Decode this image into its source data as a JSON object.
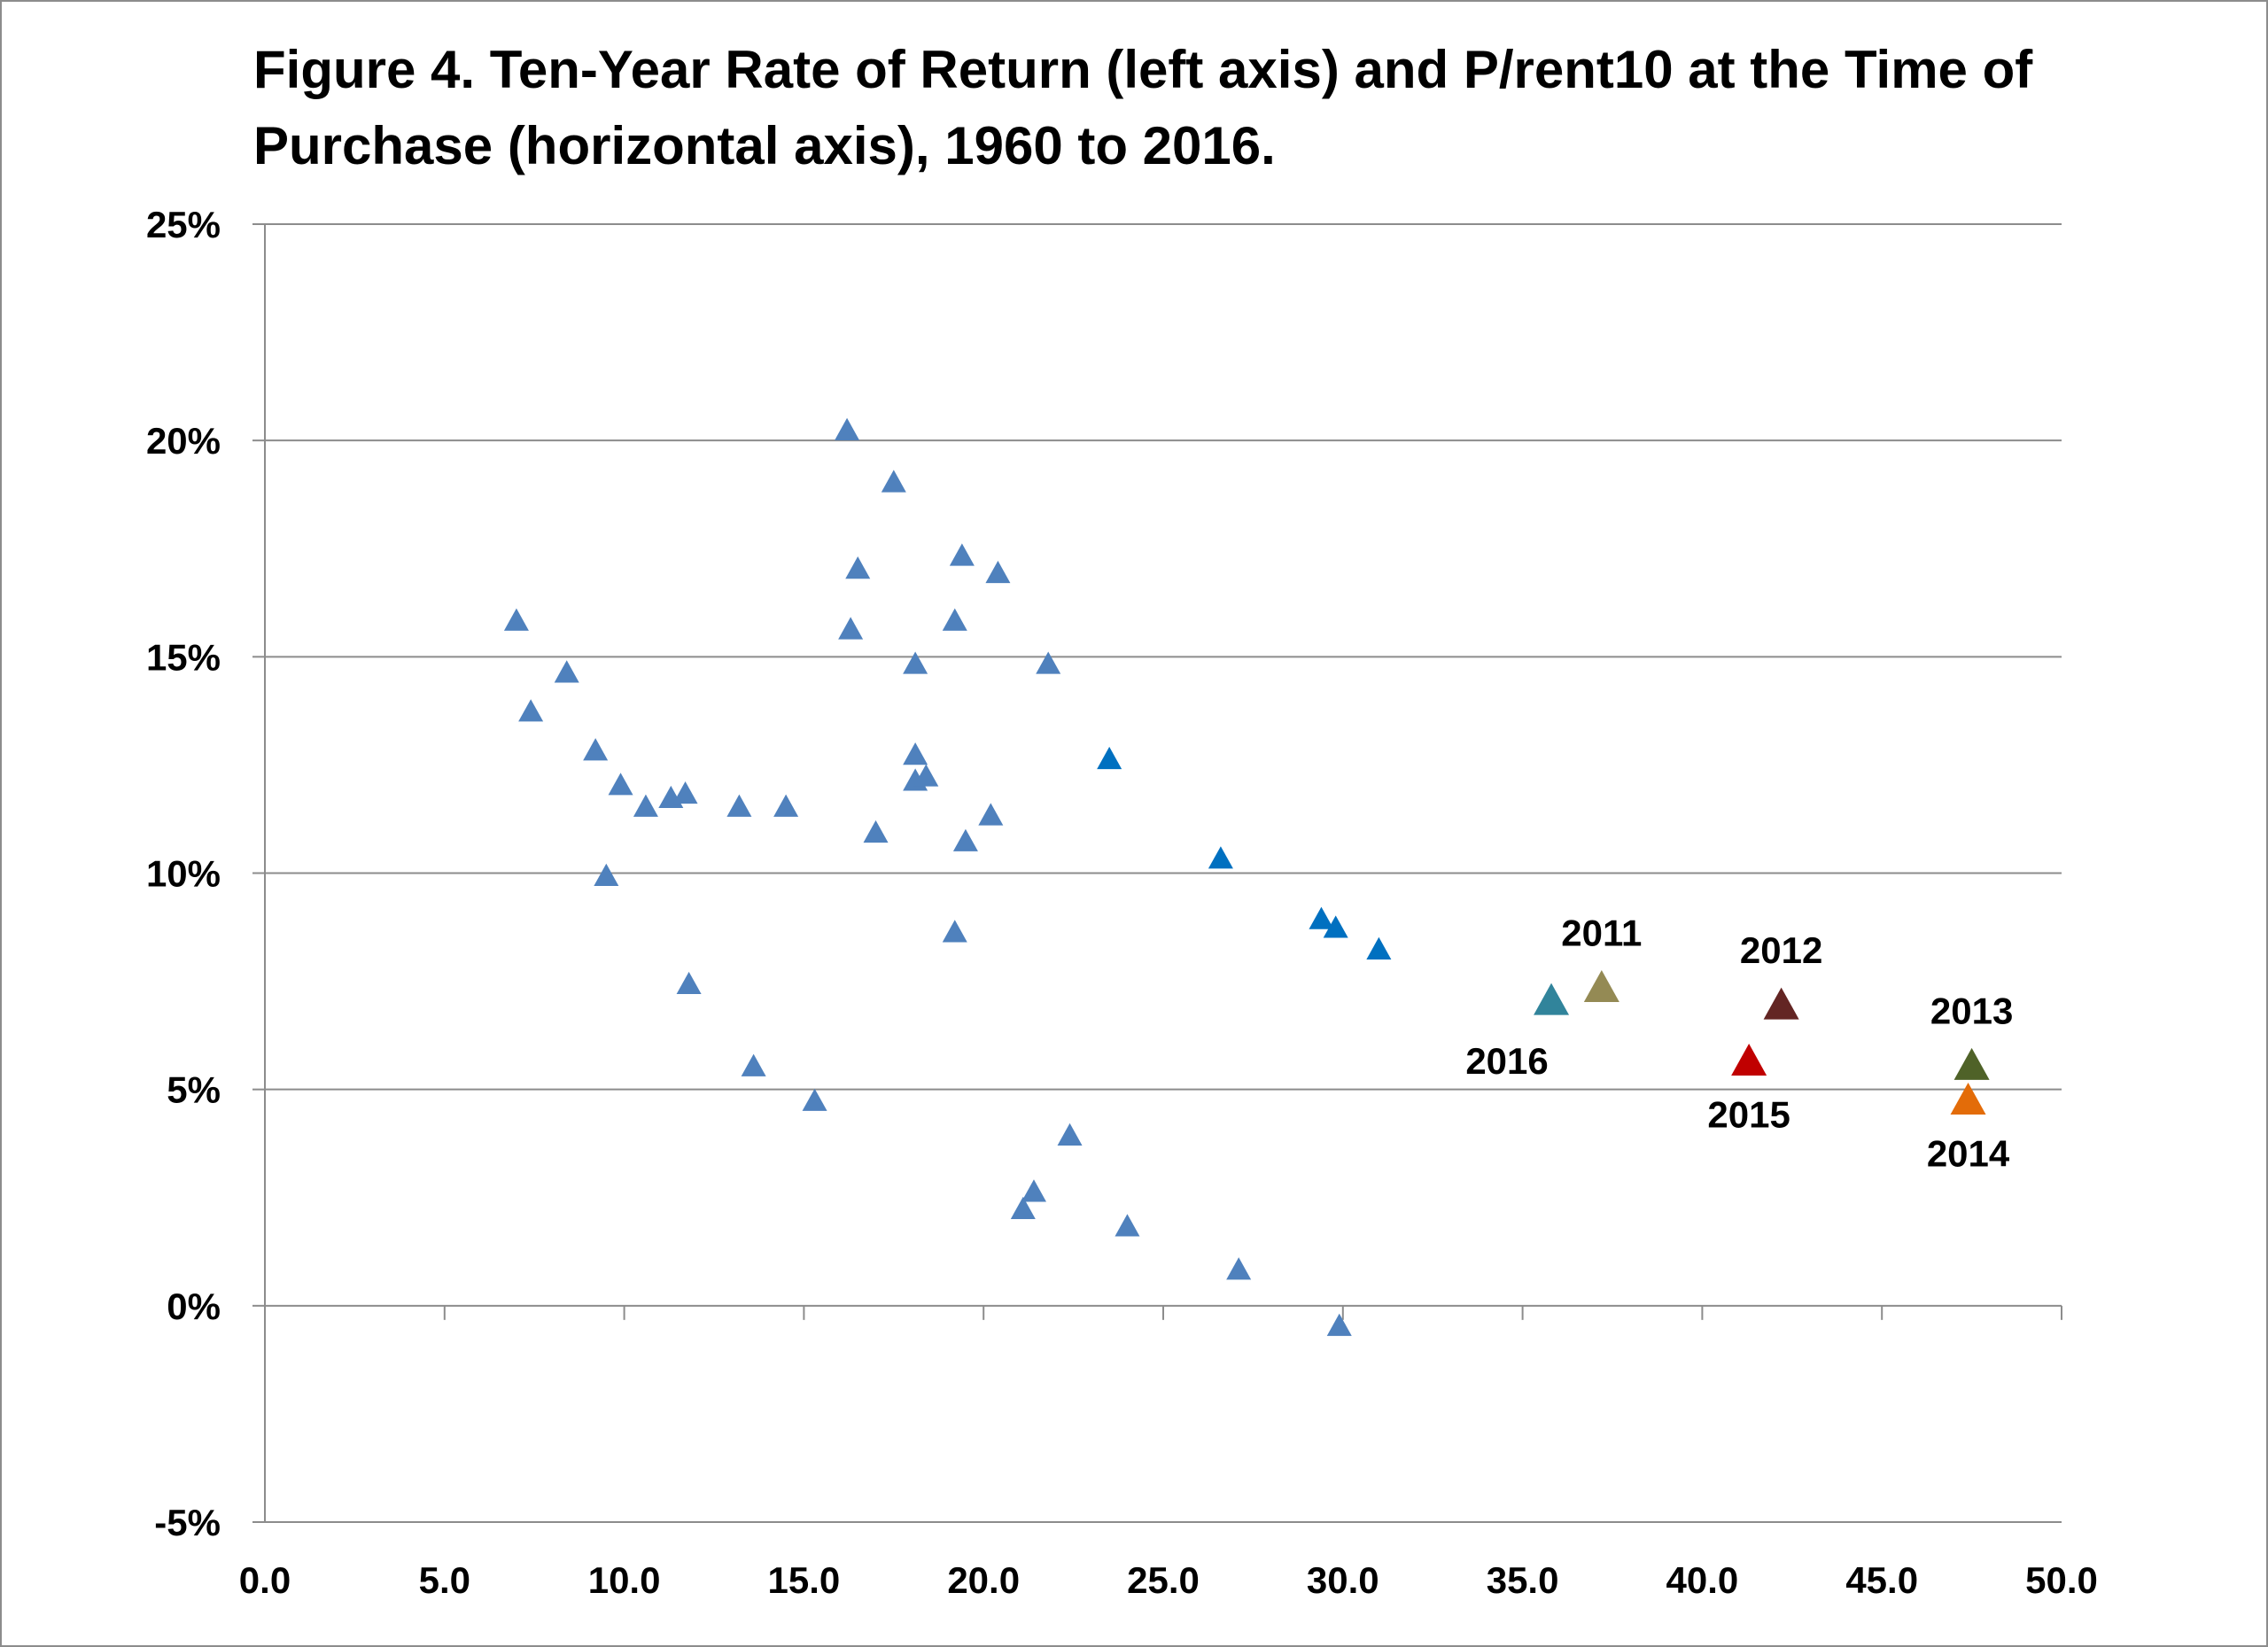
{
  "chart_data": {
    "type": "scatter",
    "title": "Figure 4.  Ten-Year Rate of Return (left axis) and P/rent10 at the Time of Purchase (horizontal axis), 1960 to 2016.",
    "xlabel": "",
    "ylabel": "",
    "xlim": [
      0,
      50
    ],
    "ylim": [
      -0.05,
      0.25
    ],
    "x_ticks": [
      "0.0",
      "5.0",
      "10.0",
      "15.0",
      "20.0",
      "25.0",
      "30.0",
      "35.0",
      "40.0",
      "45.0",
      "50.0"
    ],
    "y_ticks": [
      "-5%",
      "0%",
      "5%",
      "10%",
      "15%",
      "20%",
      "25%"
    ],
    "grid": "horizontal",
    "marker": "triangle",
    "series": [
      {
        "color": "#4f81bd",
        "points": [
          {
            "x": 7.0,
            "y": 0.158
          },
          {
            "x": 7.4,
            "y": 0.137
          },
          {
            "x": 8.4,
            "y": 0.146
          },
          {
            "x": 9.2,
            "y": 0.128
          },
          {
            "x": 9.5,
            "y": 0.099
          },
          {
            "x": 9.9,
            "y": 0.12
          },
          {
            "x": 10.6,
            "y": 0.115
          },
          {
            "x": 11.3,
            "y": 0.117
          },
          {
            "x": 11.7,
            "y": 0.118
          },
          {
            "x": 11.8,
            "y": 0.074
          },
          {
            "x": 13.2,
            "y": 0.115
          },
          {
            "x": 13.6,
            "y": 0.055
          },
          {
            "x": 14.5,
            "y": 0.115
          },
          {
            "x": 15.3,
            "y": 0.047
          },
          {
            "x": 16.2,
            "y": 0.202
          },
          {
            "x": 16.3,
            "y": 0.156
          },
          {
            "x": 16.5,
            "y": 0.17
          },
          {
            "x": 17.0,
            "y": 0.109
          },
          {
            "x": 17.5,
            "y": 0.19
          },
          {
            "x": 18.1,
            "y": 0.148
          },
          {
            "x": 18.1,
            "y": 0.127
          },
          {
            "x": 18.1,
            "y": 0.121
          },
          {
            "x": 18.4,
            "y": 0.122
          },
          {
            "x": 19.2,
            "y": 0.158
          },
          {
            "x": 19.2,
            "y": 0.086
          },
          {
            "x": 19.4,
            "y": 0.173
          },
          {
            "x": 19.5,
            "y": 0.107
          },
          {
            "x": 20.2,
            "y": 0.113
          },
          {
            "x": 20.4,
            "y": 0.169
          },
          {
            "x": 21.1,
            "y": 0.022
          },
          {
            "x": 21.4,
            "y": 0.026
          },
          {
            "x": 21.8,
            "y": 0.148
          },
          {
            "x": 22.4,
            "y": 0.039
          },
          {
            "x": 24.0,
            "y": 0.018
          },
          {
            "x": 27.1,
            "y": 0.008
          },
          {
            "x": 29.9,
            "y": -0.005
          }
        ]
      },
      {
        "color": "#0070c0",
        "points": [
          {
            "x": 23.5,
            "y": 0.126
          },
          {
            "x": 26.6,
            "y": 0.103
          },
          {
            "x": 29.4,
            "y": 0.089
          },
          {
            "x": 29.8,
            "y": 0.087
          },
          {
            "x": 31.0,
            "y": 0.082
          }
        ]
      }
    ],
    "annotations": [
      {
        "label": "2011",
        "x": 37.2,
        "y": 0.073,
        "color": "#948a54",
        "label_pos": "above"
      },
      {
        "label": "2012",
        "x": 42.2,
        "y": 0.069,
        "color": "#632523",
        "label_pos": "above"
      },
      {
        "label": "2013",
        "x": 47.5,
        "y": 0.055,
        "color": "#4f6228",
        "label_pos": "above"
      },
      {
        "label": "2014",
        "x": 47.4,
        "y": 0.047,
        "color": "#e36c09",
        "label_pos": "below"
      },
      {
        "label": "2015",
        "x": 41.3,
        "y": 0.056,
        "color": "#c00000",
        "label_pos": "below"
      },
      {
        "label": "2016",
        "x": 35.8,
        "y": 0.07,
        "color": "#31849b",
        "label_pos": "below-left"
      }
    ]
  }
}
